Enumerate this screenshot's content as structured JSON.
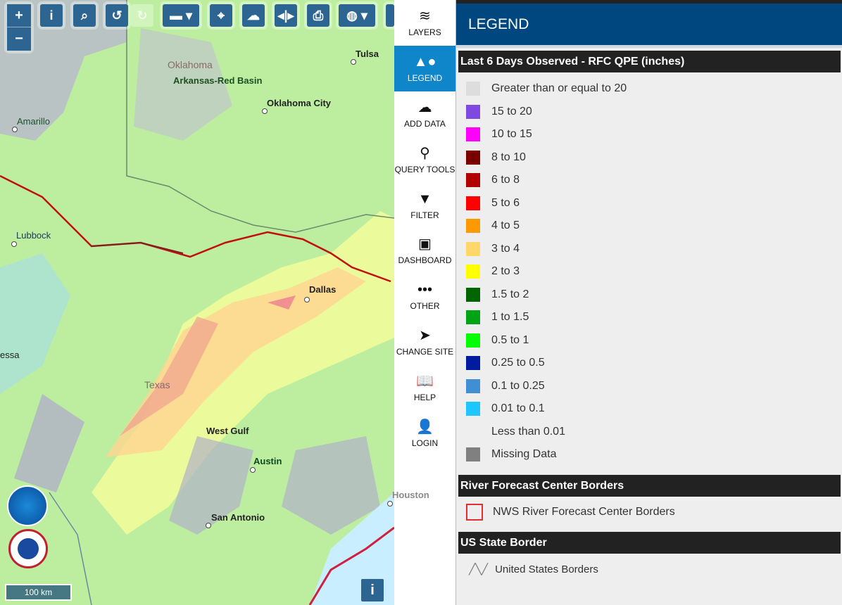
{
  "toolbar": {
    "zoom_in": "+",
    "zoom_out": "−",
    "icons": [
      "info-icon",
      "zoom-search-icon",
      "undo-icon",
      "redo-icon",
      "ruler-icon",
      "locate-icon",
      "weather-icon",
      "swipe-icon",
      "print-icon",
      "globe-icon",
      "expand-icon"
    ]
  },
  "map": {
    "regions": [
      "Oklahoma",
      "Texas"
    ],
    "basins": [
      "Arkansas-Red Basin",
      "West Gulf"
    ],
    "cities": [
      "Tulsa",
      "Oklahoma City",
      "Amarillo",
      "Lubbock",
      "Dallas",
      "Austin",
      "San Antonio",
      "Houston",
      "essa"
    ],
    "scale": "100 km",
    "info": "i"
  },
  "sidebar": {
    "items": [
      {
        "label": "LAYERS",
        "icon": "layers-icon"
      },
      {
        "label": "LEGEND",
        "icon": "shapes-icon",
        "active": true
      },
      {
        "label": "ADD DATA",
        "icon": "cloud-upload-icon"
      },
      {
        "label": "QUERY TOOLS",
        "icon": "map-pin-icon"
      },
      {
        "label": "FILTER",
        "icon": "filter-icon"
      },
      {
        "label": "DASHBOARD",
        "icon": "dashboard-icon"
      },
      {
        "label": "OTHER",
        "icon": "ellipsis-icon"
      },
      {
        "label": "CHANGE SITE",
        "icon": "location-arrow-icon"
      },
      {
        "label": "HELP",
        "icon": "book-icon"
      },
      {
        "label": "LOGIN",
        "icon": "user-icon"
      }
    ]
  },
  "legend": {
    "title": "LEGEND",
    "qpe": {
      "title": "Last 6 Days Observed - RFC QPE (inches)",
      "items": [
        {
          "label": "Greater than or equal to 20",
          "color": "#dddddd"
        },
        {
          "label": "15 to 20",
          "color": "#7f48e0"
        },
        {
          "label": "10 to 15",
          "color": "#ff00ff"
        },
        {
          "label": "8 to 10",
          "color": "#780000"
        },
        {
          "label": "6 to 8",
          "color": "#b20000"
        },
        {
          "label": "5 to 6",
          "color": "#ff0000"
        },
        {
          "label": "4 to 5",
          "color": "#ff9900"
        },
        {
          "label": "3 to 4",
          "color": "#ffd76b"
        },
        {
          "label": "2 to 3",
          "color": "#ffff00"
        },
        {
          "label": "1.5 to 2",
          "color": "#006400"
        },
        {
          "label": "1 to 1.5",
          "color": "#00a316"
        },
        {
          "label": "0.5 to 1",
          "color": "#00ff00"
        },
        {
          "label": "0.25 to 0.5",
          "color": "#001aa0"
        },
        {
          "label": "0.1 to 0.25",
          "color": "#3f8fd2"
        },
        {
          "label": "0.01 to 0.1",
          "color": "#1ec6ff"
        },
        {
          "label": "Less than 0.01",
          "color": "transparent"
        },
        {
          "label": "Missing Data",
          "color": "#808080"
        }
      ]
    },
    "rfc": {
      "title": "River Forecast Center Borders",
      "item": "NWS River Forecast Center Borders"
    },
    "state": {
      "title": "US State Border",
      "item": "United States Borders"
    }
  }
}
